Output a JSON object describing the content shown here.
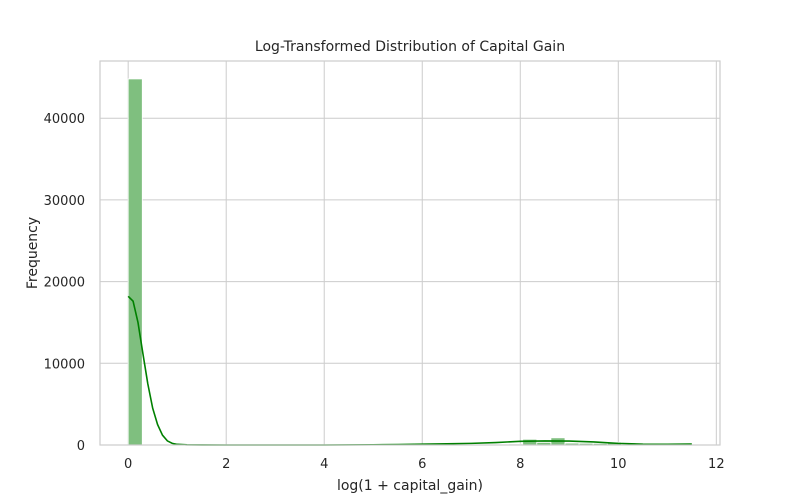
{
  "colors": {
    "bar_fill": "#7fbf7f",
    "bar_edge": "#ffffff",
    "kde_line": "#008000",
    "grid": "#cccccc",
    "text": "#262626"
  },
  "chart_data": {
    "type": "bar",
    "title": "Log-Transformed Distribution of Capital Gain",
    "xlabel": "log(1 + capital_gain)",
    "ylabel": "Frequency",
    "xlim": [
      -0.575,
      12.075
    ],
    "ylim": [
      0,
      47000
    ],
    "xticks": [
      0,
      2,
      4,
      6,
      8,
      10,
      12
    ],
    "yticks": [
      0,
      10000,
      20000,
      30000,
      40000
    ],
    "grid": true,
    "bins": {
      "start": 0,
      "width": 0.2875,
      "counts": [
        44807,
        0,
        0,
        0,
        0,
        0,
        0,
        0,
        0,
        0,
        0,
        0,
        0,
        0,
        0,
        0,
        0,
        0,
        0,
        0,
        10,
        15,
        35,
        60,
        100,
        80,
        60,
        120,
        700,
        320,
        880,
        230,
        210,
        200,
        340,
        60,
        60,
        15,
        15,
        10
      ]
    },
    "series": [
      {
        "type": "line",
        "x": [
          0,
          0.1,
          0.2,
          0.3,
          0.4,
          0.5,
          0.6,
          0.7,
          0.8,
          0.9,
          1.0,
          1.2,
          1.5,
          2,
          3,
          4,
          5,
          5.5,
          6,
          6.5,
          7,
          7.5,
          8,
          8.5,
          9,
          9.5,
          10,
          10.5,
          11,
          11.5
        ],
        "y": [
          18200,
          17600,
          15000,
          11200,
          7500,
          4500,
          2500,
          1200,
          500,
          200,
          80,
          20,
          5,
          0,
          0,
          0,
          30,
          60,
          100,
          150,
          200,
          300,
          450,
          500,
          480,
          380,
          200,
          100,
          90,
          120
        ]
      }
    ]
  }
}
